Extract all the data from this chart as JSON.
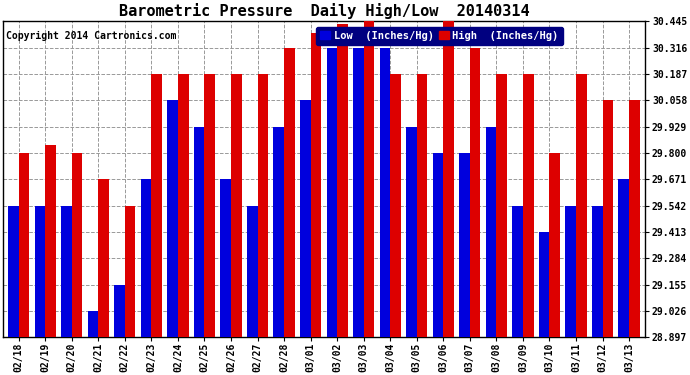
{
  "title": "Barometric Pressure  Daily High/Low  20140314",
  "copyright": "Copyright 2014 Cartronics.com",
  "legend_low_label": "Low  (Inches/Hg)",
  "legend_high_label": "High  (Inches/Hg)",
  "dates": [
    "02/18",
    "02/19",
    "02/20",
    "02/21",
    "02/22",
    "02/23",
    "02/24",
    "02/25",
    "02/26",
    "02/27",
    "02/28",
    "03/01",
    "03/02",
    "03/03",
    "03/04",
    "03/05",
    "03/06",
    "03/07",
    "03/08",
    "03/09",
    "03/10",
    "03/11",
    "03/12",
    "03/13"
  ],
  "low": [
    29.542,
    29.542,
    29.542,
    29.026,
    29.155,
    29.671,
    30.058,
    29.929,
    29.671,
    29.542,
    29.929,
    30.058,
    30.316,
    30.316,
    30.316,
    29.929,
    29.8,
    29.8,
    29.929,
    29.542,
    29.413,
    29.542,
    29.542,
    29.671
  ],
  "high": [
    29.8,
    29.84,
    29.8,
    29.671,
    29.542,
    30.187,
    30.187,
    30.187,
    30.187,
    30.187,
    30.316,
    30.39,
    30.43,
    30.445,
    30.187,
    30.187,
    30.445,
    30.316,
    30.187,
    30.187,
    29.8,
    30.187,
    30.058,
    30.058
  ],
  "ylim_min": 28.897,
  "ylim_max": 30.445,
  "yticks": [
    28.897,
    29.026,
    29.155,
    29.284,
    29.413,
    29.542,
    29.671,
    29.8,
    29.929,
    30.058,
    30.187,
    30.316,
    30.445
  ],
  "bar_width": 0.4,
  "low_color": "#0000dd",
  "high_color": "#dd0000",
  "background_color": "#ffffff",
  "grid_color": "#999999",
  "title_fontsize": 11,
  "tick_fontsize": 7,
  "legend_fontsize": 7.5,
  "copyright_fontsize": 7
}
